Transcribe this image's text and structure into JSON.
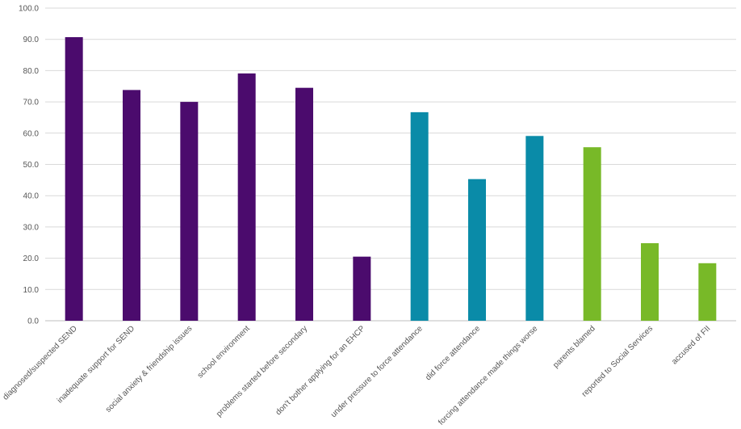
{
  "chart_data": {
    "type": "bar",
    "title": "",
    "xlabel": "",
    "ylabel": "",
    "ylim": [
      0,
      100
    ],
    "yticks": [
      0,
      10,
      20,
      30,
      40,
      50,
      60,
      70,
      80,
      90,
      100
    ],
    "ytick_labels": [
      "0.0",
      "10.0",
      "20.0",
      "30.0",
      "40.0",
      "50.0",
      "60.0",
      "70.0",
      "80.0",
      "90.0",
      "100.0"
    ],
    "grid": true,
    "categories": [
      "diagnosed/suspected SEND",
      "inadequate support for SEND",
      "social anxiety & friendship issues",
      "school environment",
      "problems started before secondary",
      "don't bother applying for an EHCP",
      "under pressure to force attendance",
      "did force attendance",
      "forcing attendance made things worse",
      "parents blamed",
      "reported to Social Services",
      "accused of FII"
    ],
    "values": [
      90.7,
      73.8,
      70.0,
      79.1,
      74.5,
      20.5,
      66.7,
      45.3,
      59.1,
      55.5,
      24.8,
      18.4
    ],
    "bar_colors": [
      "#4b0b6d",
      "#4b0b6d",
      "#4b0b6d",
      "#4b0b6d",
      "#4b0b6d",
      "#4b0b6d",
      "#0a8ba8",
      "#0a8ba8",
      "#0a8ba8",
      "#78b928",
      "#78b928",
      "#78b928"
    ]
  }
}
